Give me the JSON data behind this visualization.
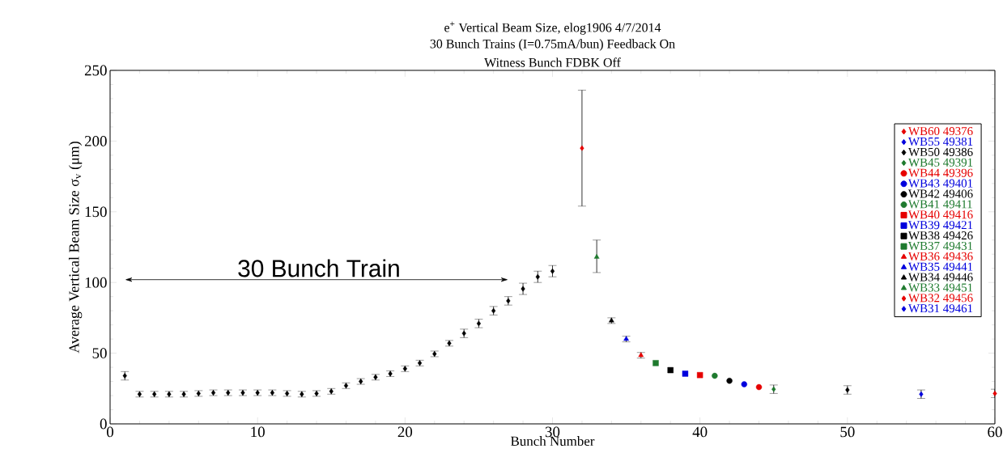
{
  "chart_data": {
    "type": "scatter",
    "title": "e$^{+}$ Vertical Beam Size, elog1906 4/7/2014",
    "subtitle": "30 Bunch Trains (I=0.75mA/bun) Feedback On",
    "annotations": [
      "Witness Bunch FDBK Off",
      "30 Bunch Train"
    ],
    "xlabel": "Bunch Number",
    "ylabel": "Average Vertical Beam Size σ$_{v}$ (μm)",
    "xlim": [
      0,
      60
    ],
    "xticks": [
      0,
      10,
      20,
      30,
      40,
      50,
      60
    ],
    "ylim": [
      0,
      250
    ],
    "yticks": [
      0,
      50,
      100,
      150,
      200,
      250
    ],
    "legend": "top right",
    "grid": false,
    "series": [
      {
        "color": "#000000",
        "marker": "diamond",
        "x": [
          1,
          2,
          3,
          4,
          5,
          6,
          7,
          8,
          9,
          10,
          11,
          12,
          13,
          14,
          15,
          16,
          17,
          18,
          19,
          20,
          21,
          22,
          23,
          24,
          25,
          26,
          27,
          28,
          29,
          30
        ],
        "values": [
          34,
          21,
          21,
          21,
          21,
          21.5,
          22,
          22,
          22,
          22,
          22,
          21.5,
          21,
          21.5,
          23,
          27,
          30,
          33,
          35.5,
          39,
          43,
          49.5,
          57,
          64,
          71,
          80,
          87,
          95.5,
          104,
          108
        ],
        "errors": [
          3,
          2,
          2,
          2,
          2,
          2,
          2,
          2,
          2,
          2,
          2,
          2,
          2,
          2,
          2,
          2,
          2,
          2,
          2,
          2,
          2,
          2,
          2,
          3,
          3,
          3,
          3,
          4,
          4,
          4
        ]
      },
      {
        "name": "WB60 49376",
        "color": "#e60000",
        "marker": "diamond",
        "x": [
          60
        ],
        "values": [
          21.5
        ],
        "errors": [
          3
        ]
      },
      {
        "name": "WB55 49381",
        "color": "#0000dd",
        "marker": "diamond",
        "x": [
          55
        ],
        "values": [
          21
        ],
        "errors": [
          3
        ]
      },
      {
        "name": "WB50 49386",
        "color": "#000000",
        "marker": "diamond",
        "x": [
          50
        ],
        "values": [
          24
        ],
        "errors": [
          3
        ]
      },
      {
        "name": "WB45 49391",
        "color": "#1e7a2e",
        "marker": "diamond",
        "x": [
          45
        ],
        "values": [
          24.5
        ],
        "errors": [
          3
        ]
      },
      {
        "name": "WB44 49396",
        "color": "#e60000",
        "marker": "circle",
        "x": [
          44
        ],
        "values": [
          26
        ]
      },
      {
        "name": "WB43 49401",
        "color": "#0000dd",
        "marker": "circle",
        "x": [
          43
        ],
        "values": [
          28
        ]
      },
      {
        "name": "WB42 49406",
        "color": "#000000",
        "marker": "circle",
        "x": [
          42
        ],
        "values": [
          30.5
        ]
      },
      {
        "name": "WB41 49411",
        "color": "#1e7a2e",
        "marker": "circle",
        "x": [
          41
        ],
        "values": [
          34
        ]
      },
      {
        "name": "WB40 49416",
        "color": "#e60000",
        "marker": "square",
        "x": [
          40
        ],
        "values": [
          34.5
        ]
      },
      {
        "name": "WB39 49421",
        "color": "#0000dd",
        "marker": "square",
        "x": [
          39
        ],
        "values": [
          35.5
        ]
      },
      {
        "name": "WB38 49426",
        "color": "#000000",
        "marker": "square",
        "x": [
          38
        ],
        "values": [
          38
        ]
      },
      {
        "name": "WB37 49431",
        "color": "#1e7a2e",
        "marker": "square",
        "x": [
          37
        ],
        "values": [
          43
        ]
      },
      {
        "name": "WB36 49436",
        "color": "#e60000",
        "marker": "triangle",
        "x": [
          36
        ],
        "values": [
          48.5
        ],
        "errors": [
          2
        ]
      },
      {
        "name": "WB35 49441",
        "color": "#0000dd",
        "marker": "triangle",
        "x": [
          35
        ],
        "values": [
          60
        ],
        "errors": [
          2
        ]
      },
      {
        "name": "WB34 49446",
        "color": "#000000",
        "marker": "triangle",
        "x": [
          34
        ],
        "values": [
          73
        ],
        "errors": [
          2
        ]
      },
      {
        "name": "WB33 49451",
        "color": "#1e7a2e",
        "marker": "triangle",
        "x": [
          33
        ],
        "values": [
          118
        ],
        "errors": [
          [
            107,
            130
          ]
        ]
      },
      {
        "name": "WB32 49456",
        "color": "#e60000",
        "marker": "diamond",
        "x": [
          32
        ],
        "values": [
          195
        ],
        "errors": [
          [
            154,
            236
          ]
        ]
      },
      {
        "name": "WB31 49461",
        "color": "#0000dd",
        "marker": "diamond"
      }
    ]
  }
}
